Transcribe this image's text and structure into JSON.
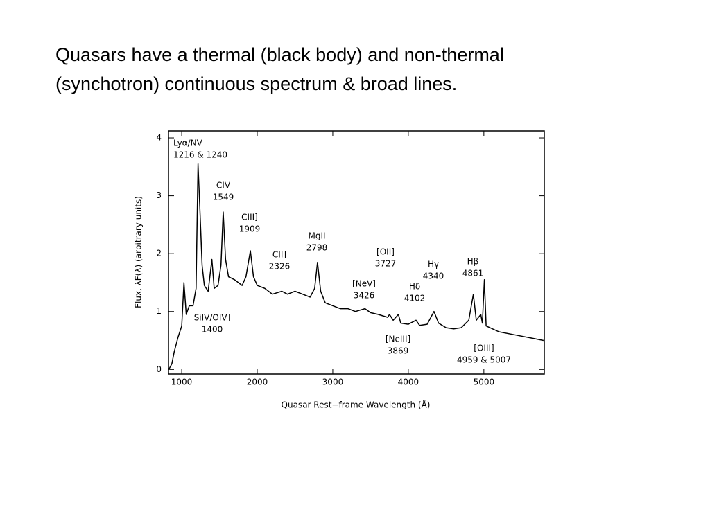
{
  "slide_text": [
    "Quasars have a thermal (black body) and non-thermal",
    "(synchotron) continuous spectrum & broad lines."
  ],
  "chart_data": {
    "type": "line",
    "x_label": "Quasar Rest−frame Wavelength   (Å)",
    "y_label": "Flux, λF(λ)   (arbitrary units)",
    "xlim": [
      825,
      5800
    ],
    "xticks": [
      1000,
      2000,
      3000,
      4000,
      5000
    ],
    "ylim": [
      -0.08,
      4.12
    ],
    "yticks": [
      0,
      1,
      2,
      3,
      4
    ],
    "color": "#000000",
    "x": [
      830,
      870,
      900,
      950,
      1000,
      1030,
      1060,
      1100,
      1150,
      1190,
      1216,
      1240,
      1270,
      1300,
      1350,
      1400,
      1430,
      1480,
      1520,
      1549,
      1580,
      1620,
      1700,
      1750,
      1800,
      1850,
      1909,
      1950,
      2000,
      2100,
      2200,
      2326,
      2400,
      2500,
      2600,
      2700,
      2760,
      2798,
      2840,
      2900,
      3000,
      3100,
      3200,
      3300,
      3426,
      3500,
      3600,
      3727,
      3750,
      3800,
      3869,
      3900,
      4000,
      4102,
      4150,
      4250,
      4340,
      4400,
      4500,
      4600,
      4700,
      4800,
      4861,
      4900,
      4959,
      4980,
      5007,
      5030,
      5200,
      5400,
      5600,
      5790
    ],
    "values": [
      0.0,
      0.1,
      0.3,
      0.55,
      0.75,
      1.5,
      0.95,
      1.1,
      1.1,
      1.4,
      3.55,
      2.8,
      1.8,
      1.45,
      1.35,
      1.9,
      1.4,
      1.45,
      1.8,
      2.72,
      1.9,
      1.6,
      1.55,
      1.5,
      1.45,
      1.6,
      2.05,
      1.6,
      1.45,
      1.4,
      1.3,
      1.35,
      1.3,
      1.35,
      1.3,
      1.25,
      1.4,
      1.85,
      1.35,
      1.15,
      1.1,
      1.05,
      1.05,
      1.0,
      1.05,
      0.98,
      0.95,
      0.9,
      0.95,
      0.85,
      0.95,
      0.8,
      0.78,
      0.85,
      0.76,
      0.78,
      1.0,
      0.8,
      0.72,
      0.7,
      0.72,
      0.85,
      1.3,
      0.85,
      0.95,
      0.8,
      1.55,
      0.75,
      0.65,
      0.6,
      0.55,
      0.5
    ],
    "annotations": [
      [
        "Lyα/NV",
        "1216 & 1240"
      ],
      [
        "CIV",
        "1549"
      ],
      [
        "CIII]",
        "1909"
      ],
      [
        "MgII",
        "2798"
      ],
      [
        "CII]",
        "2326"
      ],
      [
        "[OII]",
        "3727"
      ],
      [
        "Hγ",
        "4340"
      ],
      [
        "Hβ",
        "4861"
      ],
      [
        "[NeV]",
        "3426"
      ],
      [
        "Hδ",
        "4102"
      ],
      [
        "SiIV/OIV]",
        "1400"
      ],
      [
        "[NeIII]",
        "3869"
      ],
      [
        "[OIII]",
        "4959 & 5007"
      ]
    ]
  }
}
